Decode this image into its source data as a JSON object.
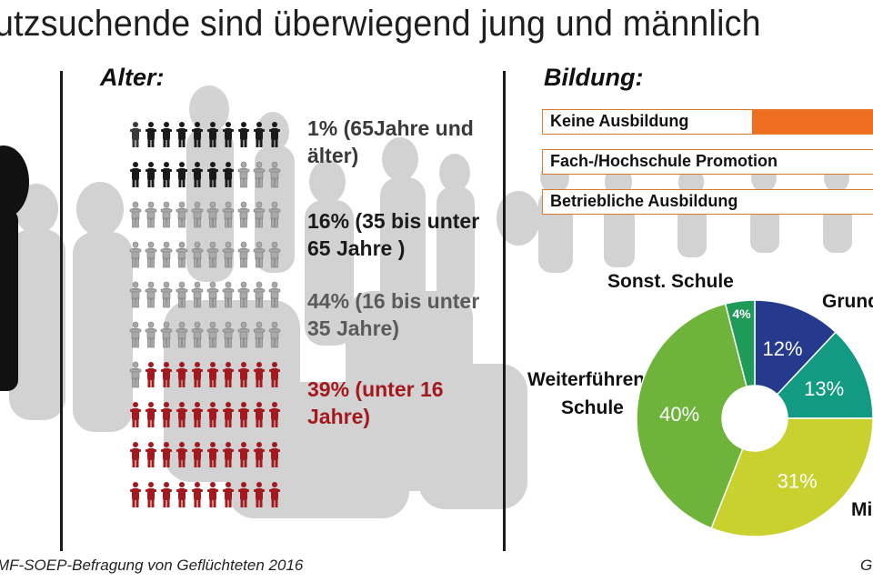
{
  "title": "utzsuchende sind überwiegend jung und männlich",
  "age_section": {
    "heading": "Alter:",
    "groups": [
      {
        "label": "1% (65Jahre und älter)",
        "lines": [
          "1% (65Jahre und",
          "älter)"
        ],
        "color": "#3a3a3a"
      },
      {
        "label": "16% (35 bis unter 65 Jahre )",
        "lines": [
          "16% (35 bis unter",
          "65 Jahre )"
        ],
        "color": "#1a1a1a"
      },
      {
        "label": "44% (16 bis unter 35 Jahre)",
        "lines": [
          "44% (16 bis unter",
          "35 Jahre)"
        ],
        "color": "#5a5a5a"
      },
      {
        "label": "39% (unter 16 Jahre)",
        "lines": [
          "39% (unter 16",
          "Jahre)"
        ],
        "color": "#a3191d"
      }
    ]
  },
  "education_section": {
    "heading": "Bildung:",
    "bars": [
      {
        "label": "Keine Ausbildung"
      },
      {
        "label": "Fach-/Hochschule Promotion"
      },
      {
        "label": "Betriebliche Ausbildung"
      }
    ],
    "pie_category_labels": {
      "sonst": "Sonst. Schule",
      "grund": "Grund",
      "weiter_1": "Weiterführende",
      "weiter_2": "Schule",
      "mittel": "Mi"
    }
  },
  "chart_data": [
    {
      "type": "pictogram",
      "title": "Alter:",
      "icon_rows": 10,
      "icons_per_row": 10,
      "categories": [
        "65Jahre und älter",
        "35 bis unter 65 Jahre",
        "16 bis unter 35 Jahre",
        "unter 16 Jahre"
      ],
      "values": [
        1,
        16,
        44,
        39
      ],
      "unit": "%",
      "colors": [
        "#3a3a3a",
        "#1a1a1a",
        "#a9a9a9",
        "#a3191d"
      ]
    },
    {
      "type": "bar",
      "title": "Bildung:",
      "categories": [
        "Keine Ausbildung",
        "Fach-/Hochschule Promotion",
        "Betriebliche Ausbildung"
      ],
      "fill_fraction_visible": [
        0.35,
        0.0,
        0.0
      ],
      "colors": [
        "#f06e22"
      ]
    },
    {
      "type": "pie",
      "donut": true,
      "slices": [
        {
          "label": "Grund",
          "value": 12,
          "display": "12%",
          "color": "#253a8c"
        },
        {
          "label": "",
          "value": 13,
          "display": "13%",
          "color": "#129a82"
        },
        {
          "label": "Mi",
          "value": 31,
          "display": "31%",
          "color": "#c8d12d"
        },
        {
          "label": "Weiterführende Schule",
          "value": 40,
          "display": "40%",
          "color": "#6fb43a"
        },
        {
          "label": "Sonst. Schule",
          "value": 4,
          "display": "4%",
          "color": "#1f9a58"
        }
      ]
    }
  ],
  "footer": {
    "source": "MF-SOEP-Befragung von Geflüchteten 2016",
    "right": "G"
  }
}
